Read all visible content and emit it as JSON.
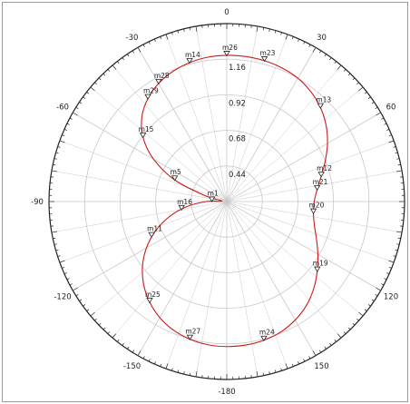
{
  "chart_data": {
    "type": "line",
    "coordinate_system": "polar",
    "angle_direction": "clockwise",
    "zero_angle": "top",
    "angle_ticks": [
      0,
      30,
      60,
      90,
      120,
      150,
      -180,
      -150,
      -120,
      -90,
      -60,
      -30
    ],
    "angle_tick_labels": [
      "0",
      "30",
      "60",
      "90",
      "120",
      "150",
      "-180",
      "-150",
      "-120",
      "-90",
      "-60",
      "-30"
    ],
    "radial_range": [
      0.2,
      1.4
    ],
    "radial_ticks": [
      0.44,
      0.68,
      0.92,
      1.16
    ],
    "radial_tick_labels": [
      "0.44",
      "0.68",
      "0.92",
      "1.16"
    ],
    "grid": true,
    "trace_color": "#cc1a1a",
    "grid_color": "#c8c8c8",
    "series": [
      {
        "theta_deg": [
          0,
          7.5,
          15,
          22.5,
          30,
          37.5,
          45,
          52.5,
          60,
          67.5,
          75,
          82.5,
          90,
          97.5,
          105,
          112.5,
          120,
          127.5,
          135,
          142.5,
          150,
          157.5,
          165,
          172.5,
          180,
          187.5,
          195,
          202.5,
          210,
          217.5,
          225,
          232.5,
          240,
          247.5,
          255,
          262.5,
          270,
          277.5,
          285,
          292.5,
          300,
          307.5,
          315,
          322.5,
          330,
          337.5,
          345,
          352.5,
          360
        ],
        "r": [
          1.186,
          1.186,
          1.183,
          1.175,
          1.16,
          1.133,
          1.095,
          1.045,
          0.985,
          0.92,
          0.86,
          0.815,
          0.79,
          0.79,
          0.812,
          0.855,
          0.91,
          0.97,
          1.03,
          1.083,
          1.123,
          1.152,
          1.168,
          1.176,
          1.178,
          1.174,
          1.161,
          1.139,
          1.104,
          1.055,
          0.993,
          0.917,
          0.826,
          0.722,
          0.605,
          0.477,
          0.34,
          0.233,
          0.35,
          0.58,
          0.77,
          0.913,
          1.01,
          1.075,
          1.12,
          1.15,
          1.17,
          1.182,
          1.186
        ]
      }
    ],
    "markers": [
      {
        "label": "m26",
        "theta": 0,
        "r": 1.186
      },
      {
        "label": "m23",
        "theta": 15,
        "r": 1.183
      },
      {
        "label": "m13",
        "theta": 45,
        "r": 1.095
      },
      {
        "label": "m12",
        "theta": 75,
        "r": 0.86
      },
      {
        "label": "m21",
        "theta": 82.5,
        "r": 0.815
      },
      {
        "label": "m20",
        "theta": 97.5,
        "r": 0.79
      },
      {
        "label": "m19",
        "theta": 127.5,
        "r": 0.97
      },
      {
        "label": "m24",
        "theta": 165,
        "r": 1.168
      },
      {
        "label": "m27",
        "theta": 195,
        "r": 1.161
      },
      {
        "label": "m25",
        "theta": 217.5,
        "r": 1.055
      },
      {
        "label": "m11",
        "theta": 245,
        "r": 0.76
      },
      {
        "label": "m16",
        "theta": 260,
        "r": 0.51
      },
      {
        "label": "m1",
        "theta": 272,
        "r": 0.3
      },
      {
        "label": "m5",
        "theta": 292.5,
        "r": 0.58
      },
      {
        "label": "m15",
        "theta": 307.5,
        "r": 0.913
      },
      {
        "label": "m29",
        "theta": 322.5,
        "r": 1.075
      },
      {
        "label": "m28",
        "theta": 330,
        "r": 1.12
      },
      {
        "label": "m14",
        "theta": 345,
        "r": 1.17
      }
    ]
  }
}
